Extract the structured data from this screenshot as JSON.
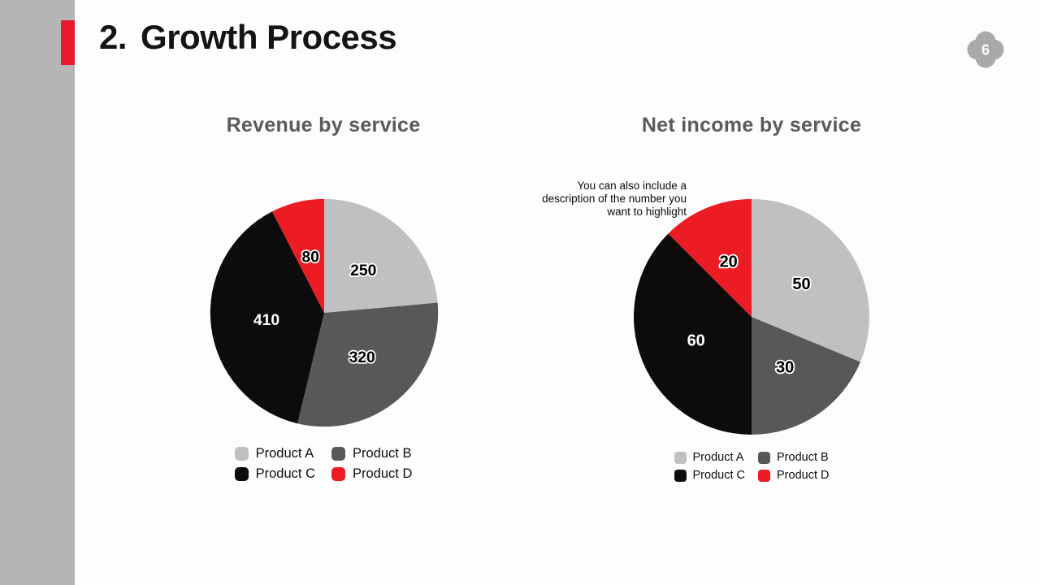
{
  "slide": {
    "page_number": "6",
    "header": {
      "number": "2.",
      "title": "Growth Process"
    },
    "colors": {
      "accent_red": "#e8192c",
      "sidebar_gray": "#b5b5b5",
      "badge_gray": "#a9a9a9",
      "chart_title_gray": "#5a5a5a"
    }
  },
  "chart_data": [
    {
      "type": "pie",
      "title": "Revenue by service",
      "categories": [
        "Product A",
        "Product B",
        "Product C",
        "Product D"
      ],
      "values": [
        250,
        320,
        410,
        80
      ],
      "colors": [
        "#c1c0c1",
        "#595859",
        "#0d0b0c",
        "#ed1c24"
      ],
      "start_angle_deg": 0,
      "direction": "clockwise",
      "data_labels": true,
      "legend_position": "bottom"
    },
    {
      "type": "pie",
      "title": "Net income by service",
      "categories": [
        "Product A",
        "Product B",
        "Product C",
        "Product D"
      ],
      "values": [
        50,
        30,
        60,
        20
      ],
      "colors": [
        "#c1c0c1",
        "#595859",
        "#0d0b0c",
        "#ed1c24"
      ],
      "start_angle_deg": 0,
      "direction": "clockwise",
      "data_labels": true,
      "legend_position": "bottom",
      "annotation": "You can also include a description of the number you want to highlight"
    }
  ]
}
